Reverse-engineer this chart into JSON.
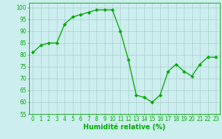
{
  "x": [
    0,
    1,
    2,
    3,
    4,
    5,
    6,
    7,
    8,
    9,
    10,
    11,
    12,
    13,
    14,
    15,
    16,
    17,
    18,
    19,
    20,
    21,
    22,
    23
  ],
  "y": [
    81,
    84,
    85,
    85,
    93,
    96,
    97,
    98,
    99,
    99,
    99,
    90,
    78,
    63,
    62,
    60,
    63,
    73,
    76,
    73,
    71,
    76,
    79,
    79
  ],
  "line_color": "#00aa00",
  "marker_color": "#00aa00",
  "bg_color": "#cceeee",
  "grid_color": "#aacccc",
  "xlabel": "Humidité relative (%)",
  "xlabel_color": "#00aa00",
  "xlim": [
    -0.5,
    23.5
  ],
  "ylim": [
    55,
    102
  ],
  "yticks": [
    55,
    60,
    65,
    70,
    75,
    80,
    85,
    90,
    95,
    100
  ],
  "xticks": [
    0,
    1,
    2,
    3,
    4,
    5,
    6,
    7,
    8,
    9,
    10,
    11,
    12,
    13,
    14,
    15,
    16,
    17,
    18,
    19,
    20,
    21,
    22,
    23
  ],
  "tick_fontsize": 5.5,
  "xlabel_fontsize": 7,
  "line_width": 1.0,
  "marker_size": 2.5
}
